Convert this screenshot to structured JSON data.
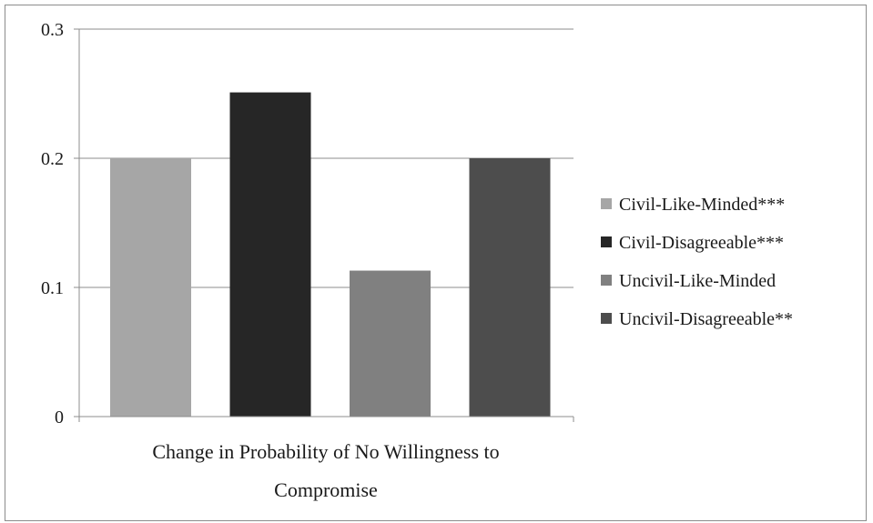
{
  "chart_data": {
    "type": "bar",
    "categories": [
      "Change in Probability of No Willingness to Compromise"
    ],
    "xlabel_lines": [
      "Change in Probability of No Willingness to",
      "Compromise"
    ],
    "ylim": [
      0,
      0.3
    ],
    "yticks": [
      {
        "value": 0,
        "label": "0"
      },
      {
        "value": 0.1,
        "label": "0.1"
      },
      {
        "value": 0.2,
        "label": "0.2"
      },
      {
        "value": 0.3,
        "label": "0.3"
      }
    ],
    "grid": true,
    "legend_position": "right",
    "series": [
      {
        "name": "Civil-Like-Minded***",
        "value": 0.2,
        "color": "#a6a6a6"
      },
      {
        "name": "Civil-Disagreeable***",
        "value": 0.251,
        "color": "#262626"
      },
      {
        "name": "Uncivil-Like-Minded",
        "value": 0.113,
        "color": "#808080"
      },
      {
        "name": "Uncivil-Disagreeable**",
        "value": 0.2,
        "color": "#4d4d4d"
      }
    ]
  }
}
